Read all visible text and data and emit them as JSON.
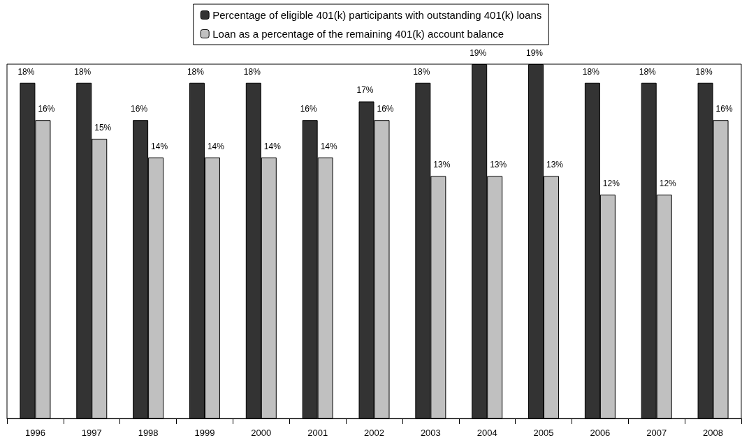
{
  "chart_data": {
    "type": "bar",
    "categories": [
      "1996",
      "1997",
      "1998",
      "1999",
      "2000",
      "2001",
      "2002",
      "2003",
      "2004",
      "2005",
      "2006",
      "2007",
      "2008"
    ],
    "series": [
      {
        "name": "Percentage of eligible 401(k) participants with outstanding 401(k) loans",
        "color": "#333333",
        "values": [
          18,
          18,
          16,
          18,
          18,
          16,
          17,
          18,
          19,
          19,
          18,
          18,
          18
        ],
        "value_labels": [
          "18%",
          "18%",
          "16%",
          "18%",
          "18%",
          "16%",
          "17%",
          "18%",
          "19%",
          "19%",
          "18%",
          "18%",
          "18%"
        ]
      },
      {
        "name": "Loan as a percentage of the remaining 401(k) account balance",
        "color": "#c0c0c0",
        "values": [
          16,
          15,
          14,
          14,
          14,
          14,
          16,
          13,
          13,
          13,
          12,
          12,
          16
        ],
        "value_labels": [
          "16%",
          "15%",
          "14%",
          "14%",
          "14%",
          "14%",
          "16%",
          "13%",
          "13%",
          "13%",
          "12%",
          "12%",
          "16%"
        ]
      }
    ],
    "tick_labels": "x",
    "legend": "top",
    "grid": false
  }
}
